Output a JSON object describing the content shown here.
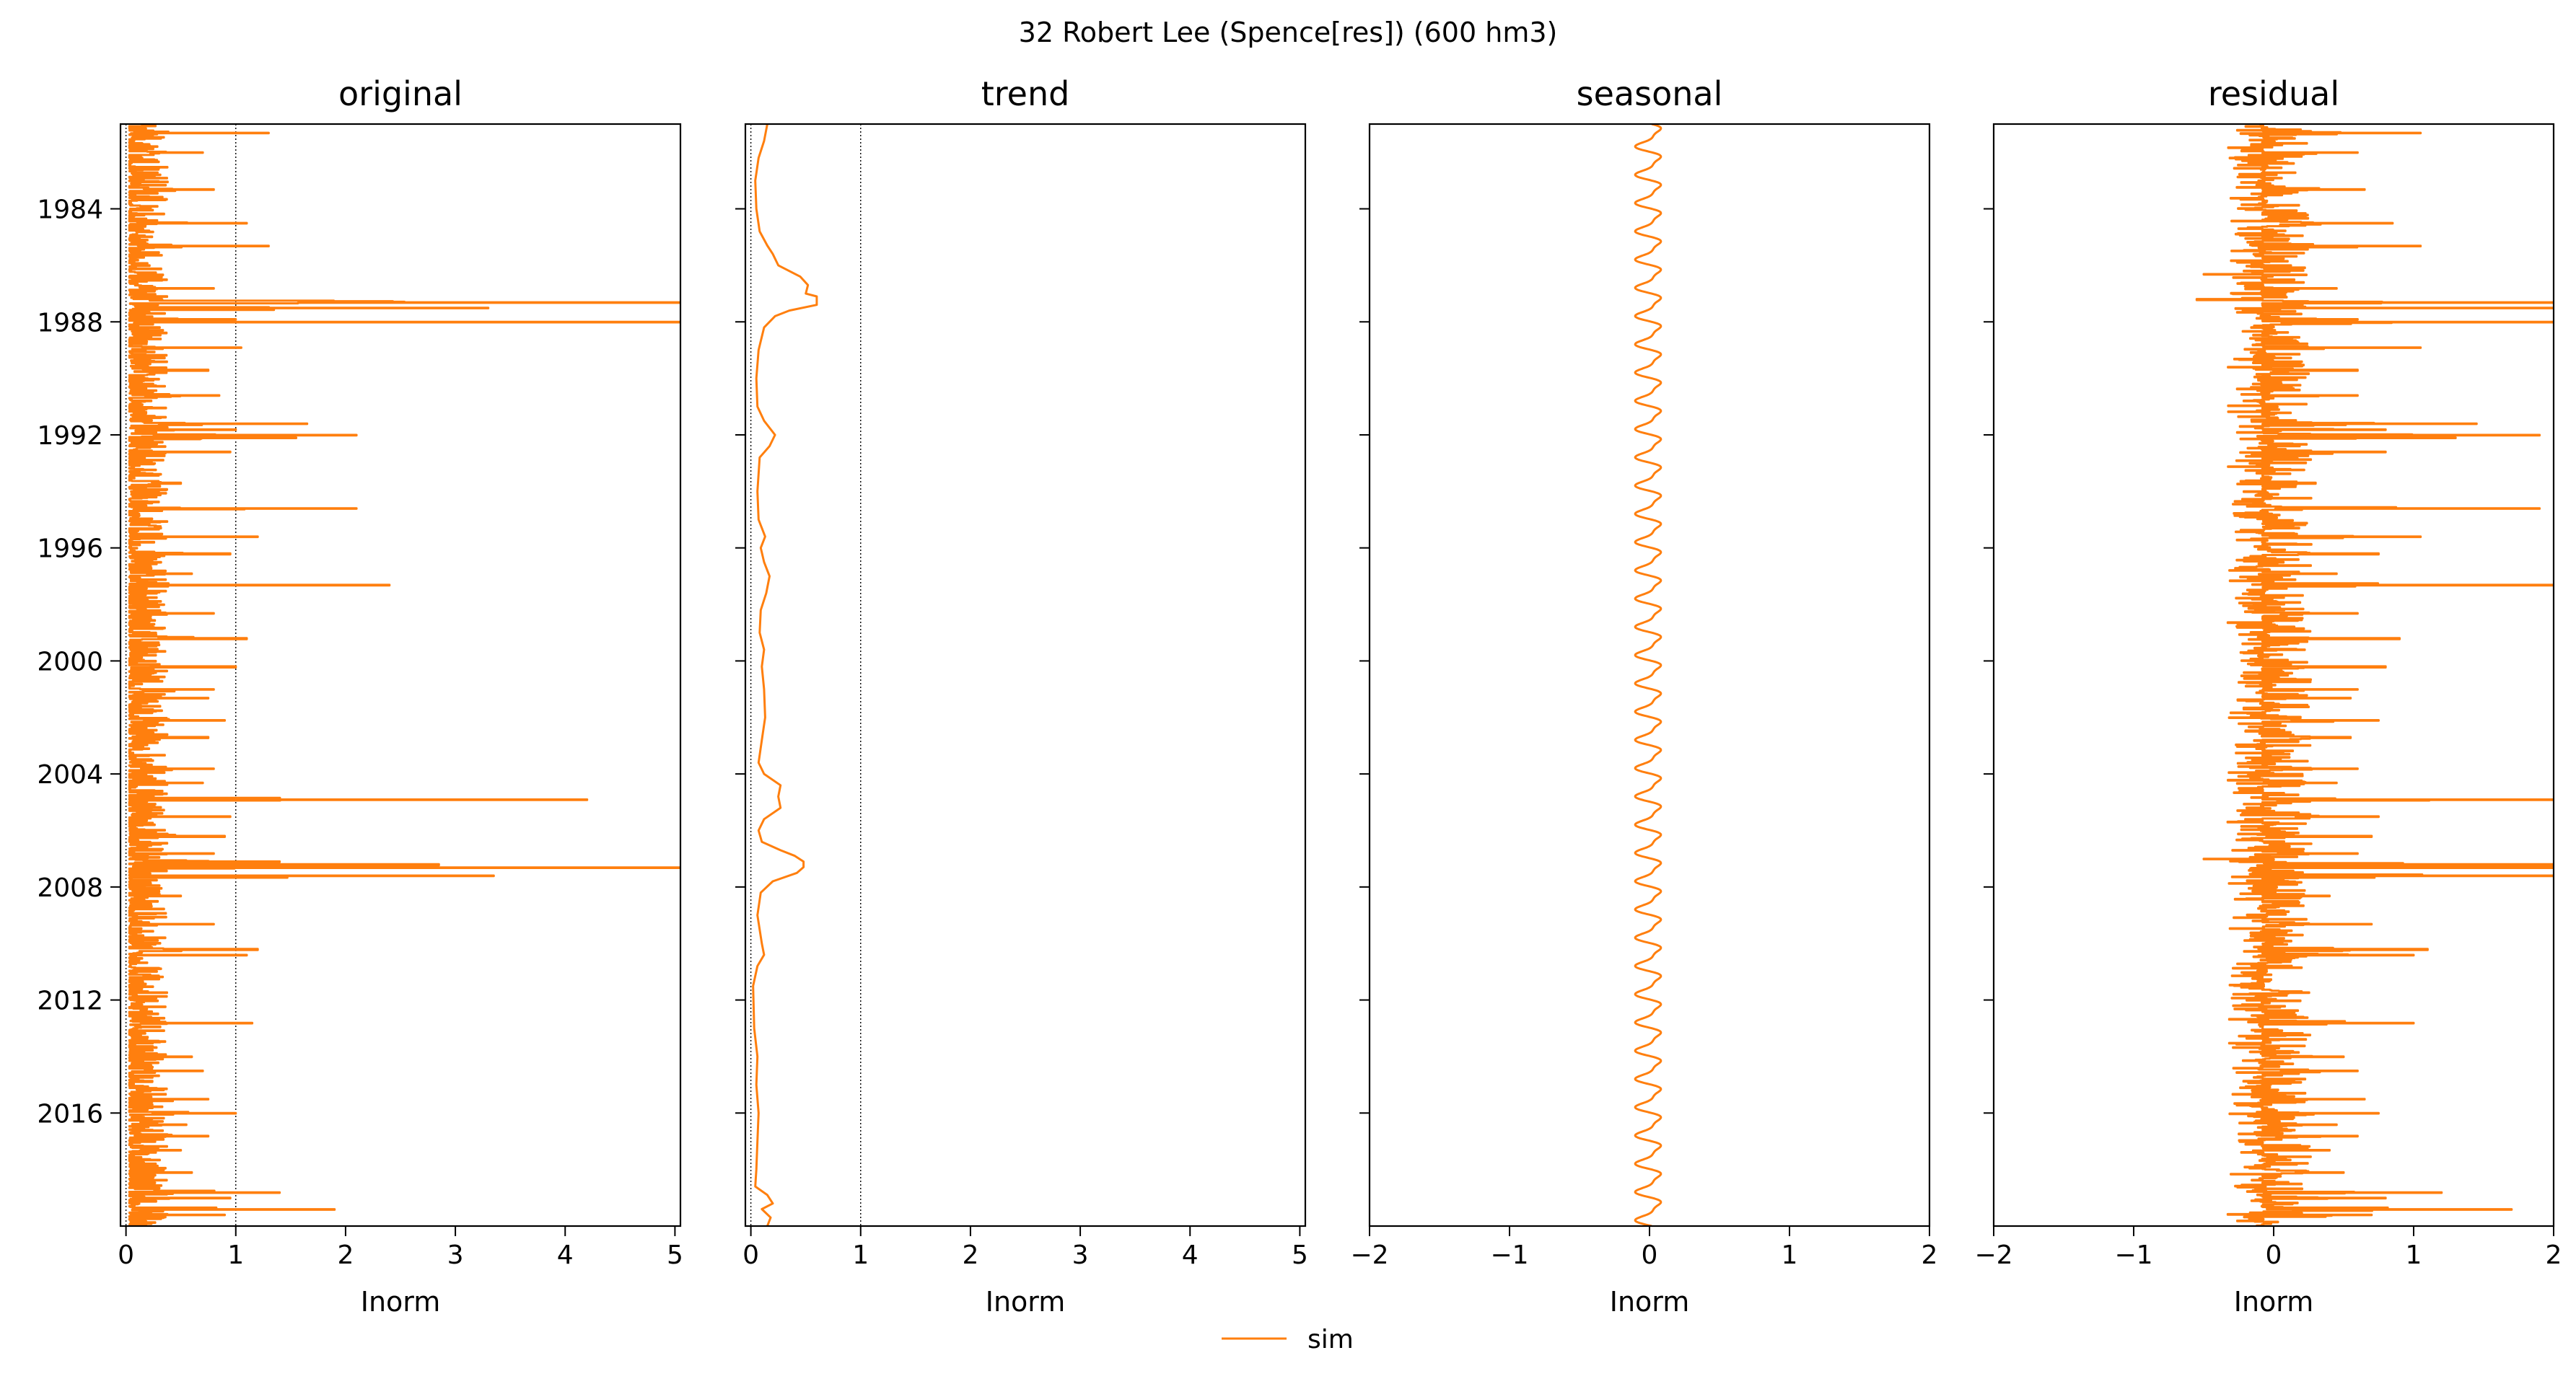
{
  "figure": {
    "title": "32  Robert Lee (Spence[res]) (600 hm3)"
  },
  "legend": {
    "entries": [
      {
        "label": "sim",
        "color": "#ff7f0e"
      }
    ],
    "placement": "lower-center"
  },
  "chart_data": [
    {
      "id": "original",
      "type": "line",
      "title": "original",
      "xlabel": "Inorm",
      "xlim": [
        -0.05,
        5.05
      ],
      "xticks": [
        0,
        1,
        2,
        3,
        4,
        5
      ],
      "ylim": [
        1981.0,
        2020.0
      ],
      "yticks": [
        1984,
        1988,
        1992,
        1996,
        2000,
        2004,
        2008,
        2012,
        2016
      ],
      "show_ytick_labels": true,
      "reference_lines": [
        0,
        1
      ],
      "series": [
        {
          "name": "sim",
          "color": "#ff7f0e",
          "profile": "spiky",
          "base": 0.03,
          "noise": 0.35,
          "spikes": [
            [
              1981.3,
              1.3
            ],
            [
              1982.0,
              0.7
            ],
            [
              1983.3,
              0.8
            ],
            [
              1984.5,
              1.1
            ],
            [
              1985.3,
              1.3
            ],
            [
              1986.8,
              0.8
            ],
            [
              1987.3,
              5.05
            ],
            [
              1987.5,
              3.3
            ],
            [
              1987.9,
              1.0
            ],
            [
              1988.0,
              5.05
            ],
            [
              1988.9,
              1.05
            ],
            [
              1989.7,
              0.75
            ],
            [
              1990.6,
              0.85
            ],
            [
              1991.6,
              1.65
            ],
            [
              1991.8,
              1.0
            ],
            [
              1992.0,
              2.1
            ],
            [
              1992.1,
              1.55
            ],
            [
              1992.6,
              0.95
            ],
            [
              1993.7,
              0.5
            ],
            [
              1994.6,
              2.1
            ],
            [
              1995.6,
              1.2
            ],
            [
              1996.2,
              0.95
            ],
            [
              1996.9,
              0.6
            ],
            [
              1997.3,
              2.4
            ],
            [
              1998.3,
              0.8
            ],
            [
              1999.2,
              1.1
            ],
            [
              2000.2,
              1.0
            ],
            [
              2001.0,
              0.8
            ],
            [
              2001.3,
              0.75
            ],
            [
              2002.1,
              0.9
            ],
            [
              2002.7,
              0.75
            ],
            [
              2003.8,
              0.8
            ],
            [
              2004.3,
              0.7
            ],
            [
              2004.9,
              4.2
            ],
            [
              2005.5,
              0.95
            ],
            [
              2006.2,
              0.9
            ],
            [
              2006.8,
              0.8
            ],
            [
              2007.1,
              1.4
            ],
            [
              2007.2,
              2.85
            ],
            [
              2007.3,
              5.05
            ],
            [
              2007.6,
              3.35
            ],
            [
              2008.3,
              0.5
            ],
            [
              2009.3,
              0.8
            ],
            [
              2010.2,
              1.2
            ],
            [
              2010.4,
              1.1
            ],
            [
              2011.7,
              0.2
            ],
            [
              2012.8,
              1.15
            ],
            [
              2014.0,
              0.6
            ],
            [
              2014.5,
              0.7
            ],
            [
              2015.5,
              0.75
            ],
            [
              2016.0,
              1.0
            ],
            [
              2016.4,
              0.55
            ],
            [
              2016.8,
              0.75
            ],
            [
              2017.3,
              0.5
            ],
            [
              2018.1,
              0.6
            ],
            [
              2018.8,
              1.4
            ],
            [
              2019.0,
              0.95
            ],
            [
              2019.4,
              1.9
            ],
            [
              2019.6,
              0.9
            ]
          ]
        }
      ]
    },
    {
      "id": "trend",
      "type": "line",
      "title": "trend",
      "xlabel": "Inorm",
      "xlim": [
        -0.05,
        5.05
      ],
      "xticks": [
        0,
        1,
        2,
        3,
        4,
        5
      ],
      "ylim": [
        1981.0,
        2020.0
      ],
      "yticks": [
        1984,
        1988,
        1992,
        1996,
        2000,
        2004,
        2008,
        2012,
        2016
      ],
      "show_ytick_labels": false,
      "reference_lines": [
        0,
        1
      ],
      "series": [
        {
          "name": "sim",
          "color": "#ff7f0e",
          "profile": "smooth",
          "points": [
            [
              1981.0,
              0.15
            ],
            [
              1981.6,
              0.12
            ],
            [
              1982.2,
              0.07
            ],
            [
              1983.0,
              0.04
            ],
            [
              1984.0,
              0.05
            ],
            [
              1984.8,
              0.08
            ],
            [
              1985.3,
              0.15
            ],
            [
              1985.6,
              0.2
            ],
            [
              1986.0,
              0.25
            ],
            [
              1986.4,
              0.45
            ],
            [
              1986.7,
              0.52
            ],
            [
              1987.0,
              0.5
            ],
            [
              1987.1,
              0.6
            ],
            [
              1987.4,
              0.6
            ],
            [
              1987.6,
              0.35
            ],
            [
              1987.8,
              0.22
            ],
            [
              1988.2,
              0.12
            ],
            [
              1989.0,
              0.07
            ],
            [
              1990.0,
              0.05
            ],
            [
              1991.0,
              0.06
            ],
            [
              1991.5,
              0.12
            ],
            [
              1992.0,
              0.22
            ],
            [
              1992.4,
              0.17
            ],
            [
              1992.8,
              0.08
            ],
            [
              1994.0,
              0.06
            ],
            [
              1995.0,
              0.07
            ],
            [
              1995.6,
              0.13
            ],
            [
              1996.0,
              0.09
            ],
            [
              1996.5,
              0.12
            ],
            [
              1997.0,
              0.17
            ],
            [
              1997.6,
              0.14
            ],
            [
              1998.2,
              0.09
            ],
            [
              1999.0,
              0.08
            ],
            [
              1999.6,
              0.12
            ],
            [
              2000.2,
              0.1
            ],
            [
              2001.0,
              0.12
            ],
            [
              2002.0,
              0.13
            ],
            [
              2002.8,
              0.1
            ],
            [
              2003.6,
              0.07
            ],
            [
              2004.0,
              0.12
            ],
            [
              2004.4,
              0.27
            ],
            [
              2004.8,
              0.25
            ],
            [
              2005.2,
              0.27
            ],
            [
              2005.6,
              0.12
            ],
            [
              2006.0,
              0.07
            ],
            [
              2006.4,
              0.1
            ],
            [
              2006.7,
              0.27
            ],
            [
              2006.9,
              0.4
            ],
            [
              2007.1,
              0.48
            ],
            [
              2007.3,
              0.48
            ],
            [
              2007.5,
              0.42
            ],
            [
              2007.8,
              0.2
            ],
            [
              2008.2,
              0.09
            ],
            [
              2009.0,
              0.06
            ],
            [
              2010.0,
              0.1
            ],
            [
              2010.4,
              0.12
            ],
            [
              2010.8,
              0.06
            ],
            [
              2011.5,
              0.02
            ],
            [
              2013.0,
              0.03
            ],
            [
              2014.0,
              0.06
            ],
            [
              2015.0,
              0.05
            ],
            [
              2016.0,
              0.07
            ],
            [
              2017.0,
              0.06
            ],
            [
              2018.0,
              0.05
            ],
            [
              2018.6,
              0.04
            ],
            [
              2018.9,
              0.15
            ],
            [
              2019.2,
              0.2
            ],
            [
              2019.4,
              0.1
            ],
            [
              2019.7,
              0.18
            ],
            [
              2020.0,
              0.15
            ]
          ]
        }
      ]
    },
    {
      "id": "seasonal",
      "type": "line",
      "title": "seasonal",
      "xlabel": "Inorm",
      "xlim": [
        -2,
        2
      ],
      "xticks": [
        -2,
        -1,
        0,
        1,
        2
      ],
      "ylim": [
        1981.0,
        2020.0
      ],
      "yticks": [
        1984,
        1988,
        1992,
        1996,
        2000,
        2004,
        2008,
        2012,
        2016
      ],
      "show_ytick_labels": false,
      "reference_lines": [],
      "series": [
        {
          "name": "sim",
          "color": "#ff7f0e",
          "profile": "periodic",
          "amplitude": 0.08,
          "period_years": 1.0
        }
      ]
    },
    {
      "id": "residual",
      "type": "line",
      "title": "residual",
      "xlabel": "Inorm",
      "xlim": [
        -2,
        2
      ],
      "xticks": [
        -2,
        -1,
        0,
        1,
        2
      ],
      "ylim": [
        1981.0,
        2020.0
      ],
      "yticks": [
        1984,
        1988,
        1992,
        1996,
        2000,
        2004,
        2008,
        2012,
        2016
      ],
      "show_ytick_labels": false,
      "reference_lines": [],
      "series": [
        {
          "name": "sim",
          "color": "#ff7f0e",
          "profile": "spiky",
          "base": -0.08,
          "noise": 0.35,
          "neg_noise": 0.25,
          "spikes": [
            [
              1981.3,
              1.05
            ],
            [
              1982.0,
              0.6
            ],
            [
              1983.3,
              0.65
            ],
            [
              1984.5,
              0.85
            ],
            [
              1985.3,
              1.05
            ],
            [
              1986.3,
              -0.5
            ],
            [
              1986.8,
              0.45
            ],
            [
              1987.2,
              -0.55
            ],
            [
              1987.3,
              2.0
            ],
            [
              1987.5,
              2.0
            ],
            [
              1987.9,
              0.6
            ],
            [
              1988.0,
              2.0
            ],
            [
              1988.9,
              1.05
            ],
            [
              1989.7,
              0.6
            ],
            [
              1990.6,
              0.6
            ],
            [
              1991.6,
              1.45
            ],
            [
              1991.8,
              0.8
            ],
            [
              1992.0,
              1.9
            ],
            [
              1992.1,
              1.3
            ],
            [
              1992.6,
              0.8
            ],
            [
              1993.7,
              0.3
            ],
            [
              1994.6,
              1.9
            ],
            [
              1995.6,
              1.05
            ],
            [
              1996.2,
              0.75
            ],
            [
              1996.9,
              0.45
            ],
            [
              1997.3,
              2.0
            ],
            [
              1998.3,
              0.6
            ],
            [
              1999.2,
              0.9
            ],
            [
              2000.2,
              0.8
            ],
            [
              2001.0,
              0.6
            ],
            [
              2001.3,
              0.55
            ],
            [
              2002.1,
              0.75
            ],
            [
              2002.7,
              0.55
            ],
            [
              2003.8,
              0.6
            ],
            [
              2004.3,
              0.45
            ],
            [
              2004.5,
              -0.25
            ],
            [
              2004.9,
              2.0
            ],
            [
              2005.5,
              0.75
            ],
            [
              2006.2,
              0.7
            ],
            [
              2006.8,
              0.6
            ],
            [
              2007.0,
              -0.5
            ],
            [
              2007.2,
              2.0
            ],
            [
              2007.3,
              2.0
            ],
            [
              2007.6,
              2.0
            ],
            [
              2008.3,
              0.4
            ],
            [
              2009.3,
              0.7
            ],
            [
              2010.2,
              1.1
            ],
            [
              2010.4,
              1.0
            ],
            [
              2011.7,
              0.2
            ],
            [
              2012.8,
              1.0
            ],
            [
              2014.0,
              0.5
            ],
            [
              2014.5,
              0.6
            ],
            [
              2015.5,
              0.65
            ],
            [
              2016.0,
              0.75
            ],
            [
              2016.4,
              0.45
            ],
            [
              2016.8,
              0.6
            ],
            [
              2017.3,
              0.4
            ],
            [
              2018.1,
              0.5
            ],
            [
              2018.8,
              1.2
            ],
            [
              2019.0,
              0.8
            ],
            [
              2019.4,
              1.7
            ],
            [
              2019.6,
              0.7
            ]
          ]
        }
      ]
    }
  ]
}
